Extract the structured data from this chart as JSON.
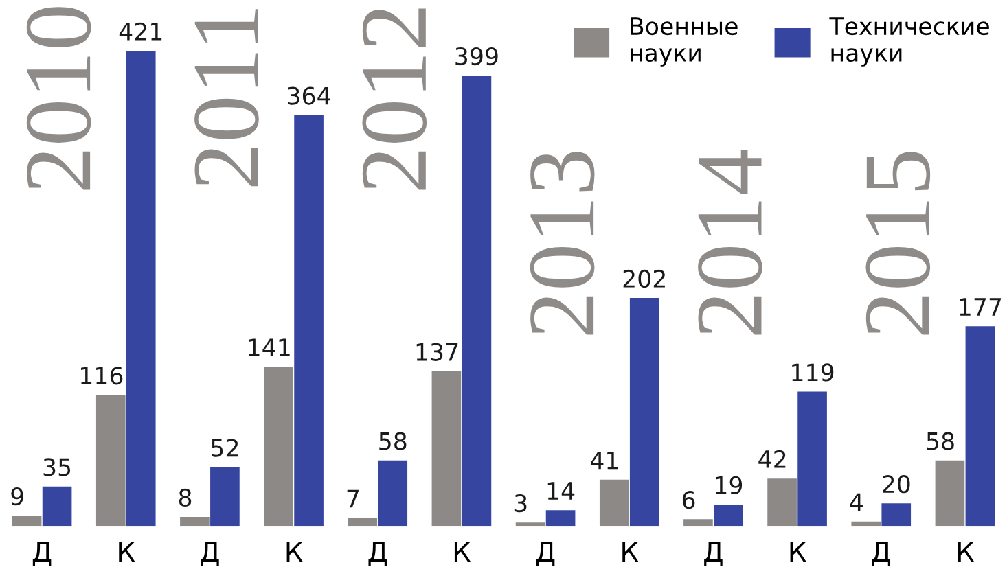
{
  "chart_data": {
    "type": "bar",
    "categories": [
      "Д",
      "К",
      "Д",
      "К",
      "Д",
      "К",
      "Д",
      "К",
      "Д",
      "К",
      "Д",
      "К"
    ],
    "series": [
      {
        "name": "Военные\nнауки",
        "color": "#8c8987",
        "values": [
          9,
          116,
          8,
          141,
          7,
          137,
          3,
          41,
          6,
          42,
          4,
          58
        ]
      },
      {
        "name": "Технические\nнауки",
        "color": "#3646a0",
        "values": [
          35,
          421,
          52,
          364,
          58,
          399,
          14,
          202,
          19,
          119,
          20,
          177
        ]
      }
    ],
    "annotations": [
      "2010",
      "2011",
      "2012",
      "2013",
      "2014",
      "2015"
    ],
    "data_labels": true,
    "legend": "top right",
    "grid": false,
    "tick_labels": "x"
  }
}
